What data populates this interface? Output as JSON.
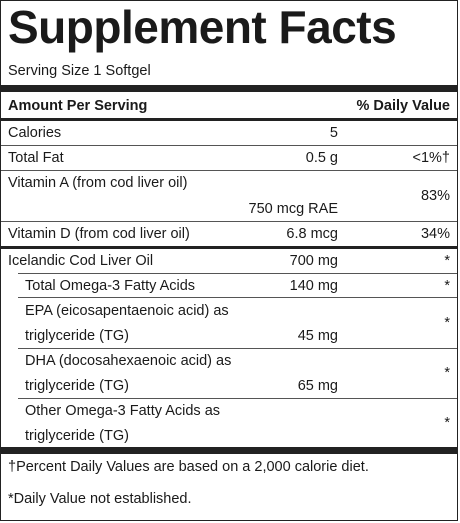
{
  "title": "Supplement Facts",
  "serving_size": "Serving Size 1 Softgel",
  "header": {
    "amount": "Amount Per Serving",
    "dv": "% Daily Value"
  },
  "rows": [
    {
      "name": "Calories",
      "amount": "5",
      "dv": ""
    },
    {
      "name": "Total Fat",
      "amount": "0.5 g",
      "dv": "<1%†"
    },
    {
      "name": "Vitamin A (from cod liver oil)",
      "amount": "750 mcg RAE",
      "dv": "83%"
    },
    {
      "name": "Vitamin D (from cod liver oil)",
      "amount": "6.8 mcg",
      "dv": "34%"
    },
    {
      "name": "Icelandic Cod Liver Oil",
      "amount": "700 mg",
      "dv": "*"
    },
    {
      "name": "Total Omega-3 Fatty Acids",
      "amount": "140 mg",
      "dv": "*"
    },
    {
      "name_line1": "EPA (eicosapentaenoic acid) as",
      "name_line2": "triglyceride (TG)",
      "amount": "45 mg",
      "dv": "*"
    },
    {
      "name_line1": "DHA (docosahexaenoic acid) as",
      "name_line2": "triglyceride (TG)",
      "amount": "65 mg",
      "dv": "*"
    },
    {
      "name_line1": "Other Omega-3 Fatty Acids as",
      "name_line2": "triglyceride (TG)",
      "amount": "",
      "dv": "*"
    }
  ],
  "footnotes": {
    "dagger": "†Percent Daily Values are based on a 2,000 calorie diet.",
    "asterisk": "*Daily Value not established."
  }
}
